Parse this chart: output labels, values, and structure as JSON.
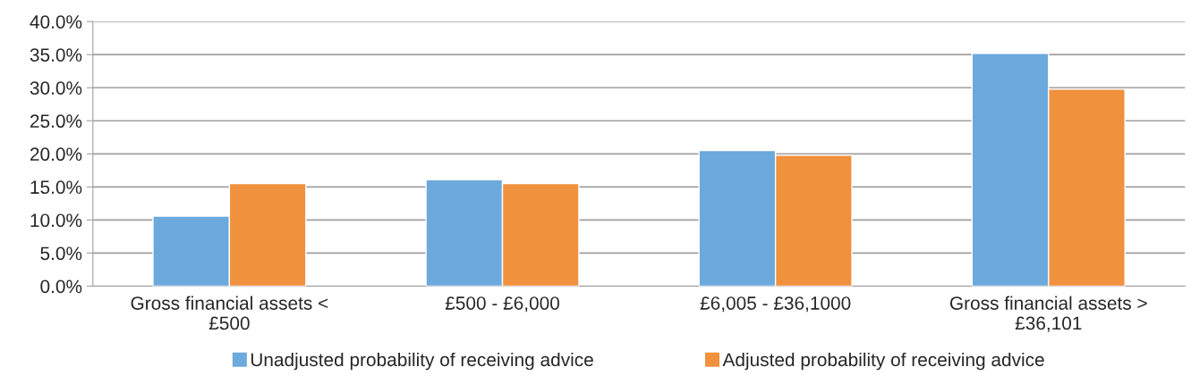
{
  "chart_data": {
    "type": "bar",
    "categories": [
      "Gross financial assets <\n£500",
      "£500 - £6,000",
      "£6,005 - £36,1000",
      "Gross financial assets >\n£36,101"
    ],
    "series": [
      {
        "name": "Unadjusted probability of receiving advice",
        "color": "#6ca9dc",
        "values": [
          10.6,
          16.1,
          20.5,
          35.2
        ]
      },
      {
        "name": "Adjusted probability of receiving advice",
        "color": "#f0913e",
        "values": [
          15.5,
          15.5,
          19.8,
          29.8
        ]
      }
    ],
    "ylim": [
      0,
      40
    ],
    "yticks": [
      {
        "value": 0,
        "label": "0.0%"
      },
      {
        "value": 5,
        "label": "5.0%"
      },
      {
        "value": 10,
        "label": "10.0%"
      },
      {
        "value": 15,
        "label": "15.0%"
      },
      {
        "value": 20,
        "label": "20.0%"
      },
      {
        "value": 25,
        "label": "25.0%"
      },
      {
        "value": 30,
        "label": "30.0%"
      },
      {
        "value": 35,
        "label": "35.0%"
      },
      {
        "value": 40,
        "label": "40.0%"
      }
    ],
    "grid": "y",
    "legend": "bottom"
  }
}
